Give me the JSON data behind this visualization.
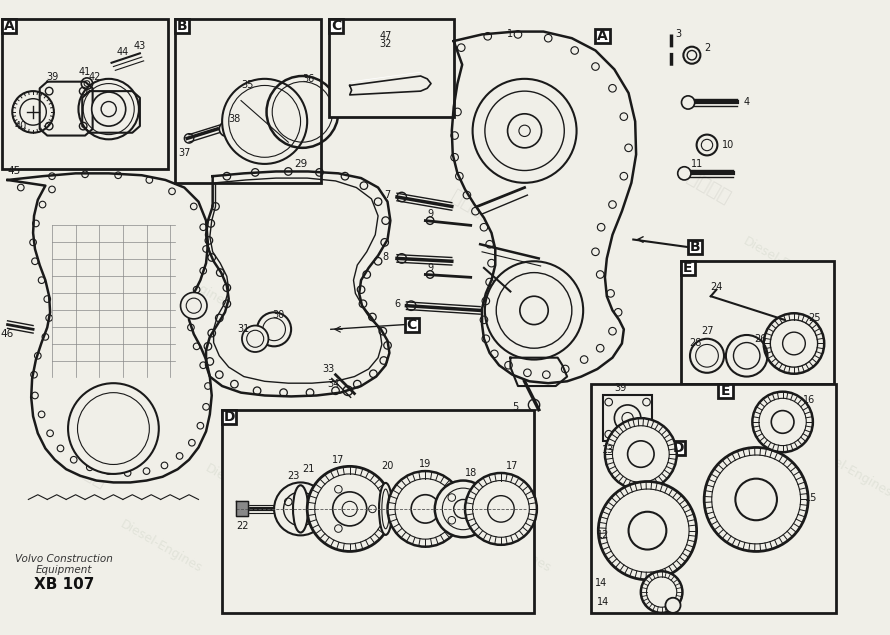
{
  "background_color": "#f0efe8",
  "line_color": "#1a1a1a",
  "footer_line1": "Volvo Construction",
  "footer_line2": "Equipment",
  "footer_line3": "XB 107",
  "wm_zh": "紫发动力",
  "wm_en": "Diesel-Engines"
}
